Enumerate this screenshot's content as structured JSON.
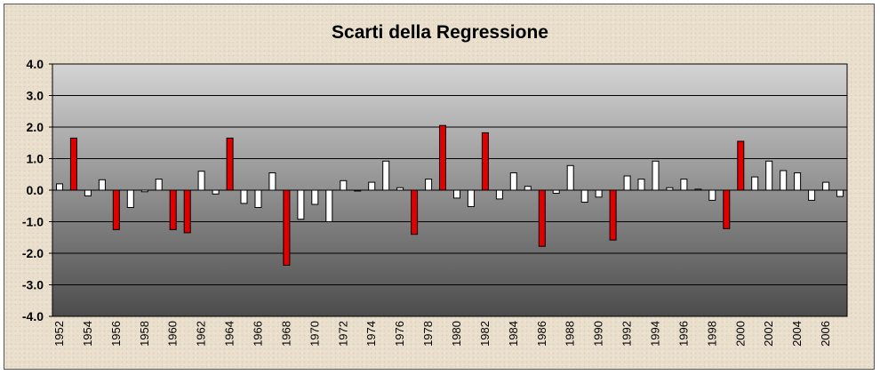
{
  "chart_data": {
    "type": "bar",
    "title": "Scarti della Regressione",
    "xlabel": "",
    "ylabel": "",
    "ylim": [
      -4.0,
      4.0
    ],
    "yticks": [
      "4.0",
      "3.0",
      "2.0",
      "1.0",
      "0.0",
      "-1.0",
      "-2.0",
      "-3.0",
      "-4.0"
    ],
    "xtick_labels": [
      "1952",
      "1954",
      "1956",
      "1958",
      "1960",
      "1962",
      "1964",
      "1966",
      "1968",
      "1970",
      "1972",
      "1974",
      "1976",
      "1978",
      "1980",
      "1982",
      "1984",
      "1986",
      "1988",
      "1990",
      "1992",
      "1994",
      "1996",
      "1998",
      "2000",
      "2002",
      "2004",
      "2006"
    ],
    "grid": true,
    "legend": "none",
    "colors": {
      "normal": "#ffffff",
      "highlight": "#e00000"
    },
    "categories": [
      1952,
      1953,
      1954,
      1955,
      1956,
      1957,
      1958,
      1959,
      1960,
      1961,
      1962,
      1963,
      1964,
      1965,
      1966,
      1967,
      1968,
      1969,
      1970,
      1971,
      1972,
      1973,
      1974,
      1975,
      1976,
      1977,
      1978,
      1979,
      1980,
      1981,
      1982,
      1983,
      1984,
      1985,
      1986,
      1987,
      1988,
      1989,
      1990,
      1991,
      1992,
      1993,
      1994,
      1995,
      1996,
      1997,
      1998,
      1999,
      2000,
      2001,
      2002,
      2003,
      2004,
      2005,
      2006,
      2007
    ],
    "values": [
      0.2,
      1.65,
      -0.18,
      0.33,
      -1.25,
      -0.55,
      -0.05,
      0.35,
      -1.25,
      -1.35,
      0.6,
      -0.12,
      1.65,
      -0.42,
      -0.55,
      0.55,
      -2.38,
      -0.92,
      -0.45,
      -1.0,
      0.3,
      0.0,
      0.25,
      0.92,
      0.08,
      -1.4,
      0.35,
      2.05,
      -0.25,
      -0.52,
      1.82,
      -0.28,
      0.55,
      0.12,
      -1.78,
      -0.1,
      0.78,
      -0.38,
      -0.22,
      -1.58,
      0.45,
      0.35,
      0.92,
      0.08,
      0.35,
      0.03,
      -0.32,
      -1.22,
      1.55,
      0.42,
      0.92,
      0.62,
      0.55,
      -0.32,
      0.25,
      -0.2
    ],
    "highlight": [
      false,
      true,
      false,
      false,
      true,
      false,
      false,
      false,
      true,
      true,
      false,
      false,
      true,
      false,
      false,
      false,
      true,
      false,
      false,
      false,
      false,
      false,
      false,
      false,
      false,
      true,
      false,
      true,
      false,
      false,
      true,
      false,
      false,
      false,
      true,
      false,
      false,
      false,
      false,
      true,
      false,
      false,
      false,
      false,
      false,
      false,
      false,
      true,
      true,
      false,
      false,
      false,
      false,
      false,
      false,
      false
    ]
  }
}
